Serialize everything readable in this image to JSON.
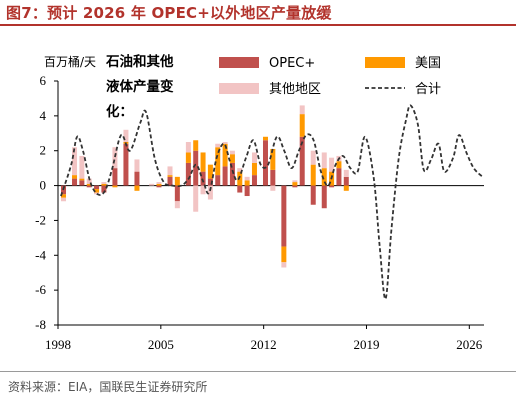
{
  "page": {
    "title": "图7：预计 2026 年 OPEC+以外地区产量放缓",
    "source": "资料来源：EIA，国联民生证券研究所"
  },
  "chart_data": {
    "type": "bar",
    "stacked": true,
    "y_unit": "百万桶/天",
    "annotation": [
      "石油和其他",
      "液体产量变",
      "化："
    ],
    "ylim": [
      -8,
      6
    ],
    "yticks": [
      -8,
      -6,
      -4,
      -2,
      0,
      2,
      4,
      6
    ],
    "xtick_labels": [
      {
        "label": "1998",
        "index": 0
      },
      {
        "label": "2005",
        "index": 28
      },
      {
        "label": "2012",
        "index": 56
      },
      {
        "label": "2019",
        "index": 84
      },
      {
        "label": "2026",
        "index": 112
      }
    ],
    "x_start_year": 1998,
    "periods_per_year": 4,
    "colors": {
      "OPEC+": "#c0504d",
      "美国": "#ff9900",
      "其他地区": "#f2c4c4",
      "合计": "#333333"
    },
    "bars": [
      {
        "index": 1,
        "values": [
          -0.5,
          -0.2,
          -0.2
        ]
      },
      {
        "index": 4,
        "values": [
          0.4,
          0.2,
          1.6
        ]
      },
      {
        "index": 6,
        "values": [
          0.3,
          0.1,
          1.3
        ]
      },
      {
        "index": 8,
        "values": [
          -0.1,
          0.1,
          0.3
        ]
      },
      {
        "index": 10,
        "values": [
          -0.2,
          -0.2,
          -0.1
        ]
      },
      {
        "index": 12,
        "values": [
          -0.4,
          0.1,
          0.1
        ]
      },
      {
        "index": 15,
        "values": [
          1.0,
          -0.1,
          1.2
        ]
      },
      {
        "index": 18,
        "values": [
          2.4,
          0.1,
          0.7
        ]
      },
      {
        "index": 21,
        "values": [
          0.8,
          -0.3,
          0.7
        ]
      },
      {
        "index": 25,
        "values": [
          0.0,
          0.0,
          0.1
        ]
      },
      {
        "index": 27,
        "values": [
          -0.1,
          0.1,
          0.1
        ]
      },
      {
        "index": 30,
        "values": [
          0.5,
          0.1,
          0.5
        ]
      },
      {
        "index": 32,
        "values": [
          -0.9,
          0.5,
          -0.4
        ]
      },
      {
        "index": 35,
        "values": [
          1.3,
          0.6,
          0.6
        ]
      },
      {
        "index": 37,
        "values": [
          2.0,
          0.6,
          -1.5
        ]
      },
      {
        "index": 39,
        "values": [
          0.8,
          1.1,
          -0.5
        ]
      },
      {
        "index": 41,
        "values": [
          0.4,
          0.8,
          -0.8
        ]
      },
      {
        "index": 43,
        "values": [
          0.6,
          1.6,
          0.2
        ]
      },
      {
        "index": 45,
        "values": [
          1.1,
          1.3,
          0.1
        ]
      },
      {
        "index": 47,
        "values": [
          1.3,
          0.5,
          0.2
        ]
      },
      {
        "index": 49,
        "values": [
          -0.4,
          0.8,
          0.2
        ]
      },
      {
        "index": 51,
        "values": [
          -0.6,
          0.3,
          0.2
        ]
      },
      {
        "index": 53,
        "values": [
          0.6,
          0.7,
          0.6
        ]
      },
      {
        "index": 56,
        "values": [
          2.6,
          0.2,
          0.0
        ]
      },
      {
        "index": 58,
        "values": [
          0.9,
          1.2,
          -0.3
        ]
      },
      {
        "index": 61,
        "values": [
          -3.5,
          -0.9,
          -0.3
        ]
      },
      {
        "index": 64,
        "values": [
          -0.1,
          0.2,
          0.1
        ]
      },
      {
        "index": 66,
        "values": [
          2.8,
          1.3,
          0.5
        ]
      },
      {
        "index": 69,
        "values": [
          -1.1,
          1.2,
          0.8
        ]
      },
      {
        "index": 72,
        "values": [
          -1.3,
          1.0,
          0.9
        ]
      },
      {
        "index": 74,
        "values": [
          -0.1,
          0.8,
          0.8
        ]
      },
      {
        "index": 76,
        "values": [
          1.0,
          0.4,
          0.3
        ]
      },
      {
        "index": 78,
        "values": [
          0.5,
          -0.3,
          0.4
        ]
      }
    ],
    "series": [
      {
        "name": "OPEC+",
        "kind": "bar",
        "color": "#c0504d"
      },
      {
        "name": "美国",
        "kind": "bar",
        "color": "#ff9900"
      },
      {
        "name": "其他地区",
        "kind": "bar",
        "color": "#f2c4c4"
      },
      {
        "name": "合计",
        "kind": "line",
        "style": "dashed",
        "color": "#333333",
        "points": [
          [
            1998.2,
            -0.6
          ],
          [
            1998.9,
            1.2
          ],
          [
            1999.3,
            2.8
          ],
          [
            1999.7,
            2.0
          ],
          [
            2000.2,
            0.2
          ],
          [
            2000.7,
            -0.5
          ],
          [
            2001.2,
            -0.3
          ],
          [
            2001.7,
            1.0
          ],
          [
            2002.3,
            2.9
          ],
          [
            2002.9,
            2.0
          ],
          [
            2003.6,
            3.6
          ],
          [
            2004.0,
            4.2
          ],
          [
            2004.6,
            1.5
          ],
          [
            2005.2,
            0.2
          ],
          [
            2005.8,
            0.0
          ],
          [
            2006.4,
            0.0
          ],
          [
            2006.9,
            0.4
          ],
          [
            2007.4,
            1.2
          ],
          [
            2007.9,
            0.2
          ],
          [
            2008.3,
            -0.4
          ],
          [
            2008.8,
            1.6
          ],
          [
            2009.3,
            2.4
          ],
          [
            2009.7,
            1.4
          ],
          [
            2010.2,
            0.3
          ],
          [
            2010.8,
            1.6
          ],
          [
            2011.3,
            2.6
          ],
          [
            2011.8,
            1.2
          ],
          [
            2012.3,
            1.2
          ],
          [
            2012.9,
            2.8
          ],
          [
            2013.4,
            2.0
          ],
          [
            2013.9,
            1.0
          ],
          [
            2014.4,
            2.0
          ],
          [
            2014.9,
            2.9
          ],
          [
            2015.4,
            2.6
          ],
          [
            2015.9,
            0.8
          ],
          [
            2016.4,
            0.0
          ],
          [
            2016.9,
            1.2
          ],
          [
            2017.4,
            1.7
          ],
          [
            2017.9,
            1.0
          ],
          [
            2018.4,
            0.8
          ],
          [
            2018.9,
            2.8
          ],
          [
            2019.5,
            0.4
          ],
          [
            2019.9,
            -3.5
          ],
          [
            2020.3,
            -6.5
          ],
          [
            2020.7,
            -2.5
          ],
          [
            2021.2,
            1.6
          ],
          [
            2021.7,
            3.8
          ],
          [
            2022.0,
            4.6
          ],
          [
            2022.5,
            3.5
          ],
          [
            2022.9,
            0.9
          ],
          [
            2023.4,
            1.5
          ],
          [
            2023.9,
            2.4
          ],
          [
            2024.3,
            0.8
          ],
          [
            2024.9,
            1.6
          ],
          [
            2025.3,
            2.9
          ],
          [
            2025.8,
            1.9
          ],
          [
            2026.3,
            1.0
          ],
          [
            2026.9,
            0.5
          ]
        ]
      }
    ]
  }
}
